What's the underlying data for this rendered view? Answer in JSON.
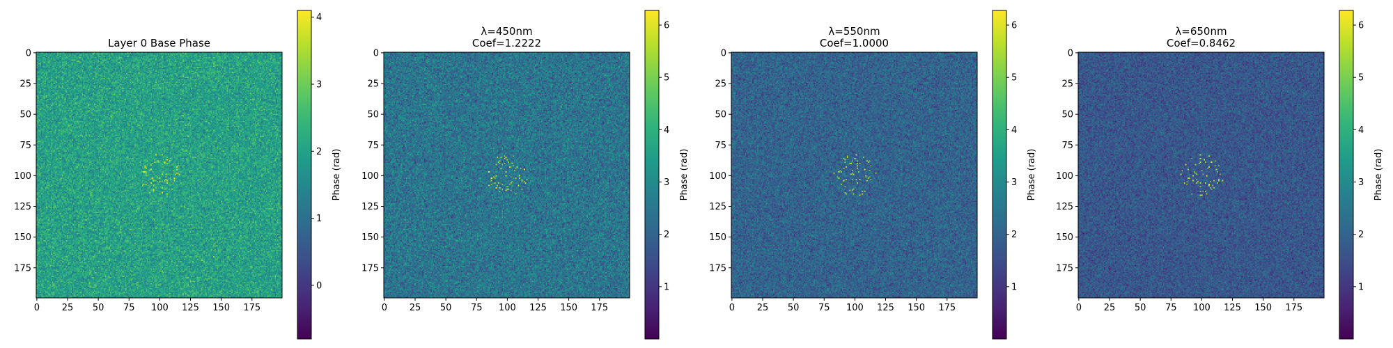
{
  "chart_data": [
    {
      "type": "heatmap",
      "title_lines": [
        "Layer 0 Base Phase"
      ],
      "x_ticks": [
        0,
        25,
        50,
        75,
        100,
        125,
        150,
        175
      ],
      "y_ticks": [
        0,
        25,
        50,
        75,
        100,
        125,
        150,
        175
      ],
      "xlim": [
        0,
        199
      ],
      "ylim": [
        0,
        199
      ],
      "grid_size": 200,
      "colormap": "viridis",
      "colorbar": {
        "label": "Phase (rad)",
        "range": [
          -0.8,
          4.1
        ],
        "ticks": [
          0,
          1,
          2,
          3,
          4
        ]
      },
      "background_mean_rad": 2.0,
      "background_spread_rad": 0.7,
      "center_feature": "sparse bright points near (100, 100)",
      "center_point_value_rad": 4.0
    },
    {
      "type": "heatmap",
      "title_lines": [
        "λ=450nm",
        "Coef=1.2222"
      ],
      "x_ticks": [
        0,
        25,
        50,
        75,
        100,
        125,
        150,
        175
      ],
      "y_ticks": [
        0,
        25,
        50,
        75,
        100,
        125,
        150,
        175
      ],
      "xlim": [
        0,
        199
      ],
      "ylim": [
        0,
        199
      ],
      "grid_size": 200,
      "colormap": "viridis",
      "colorbar": {
        "label": "Phase (rad)",
        "range": [
          0.0,
          6.28
        ],
        "ticks": [
          1,
          2,
          3,
          4,
          5,
          6
        ]
      },
      "background_mean_rad": 2.45,
      "background_spread_rad": 0.9,
      "center_feature": "sparse bright points near (100, 100)",
      "center_point_value_rad": 6.2
    },
    {
      "type": "heatmap",
      "title_lines": [
        "λ=550nm",
        "Coef=1.0000"
      ],
      "x_ticks": [
        0,
        25,
        50,
        75,
        100,
        125,
        150,
        175
      ],
      "y_ticks": [
        0,
        25,
        50,
        75,
        100,
        125,
        150,
        175
      ],
      "xlim": [
        0,
        199
      ],
      "ylim": [
        0,
        199
      ],
      "grid_size": 200,
      "colormap": "viridis",
      "colorbar": {
        "label": "Phase (rad)",
        "range": [
          0.0,
          6.28
        ],
        "ticks": [
          1,
          2,
          3,
          4,
          5,
          6
        ]
      },
      "background_mean_rad": 2.0,
      "background_spread_rad": 0.75,
      "center_feature": "sparse bright points near (100, 100)",
      "center_point_value_rad": 6.1
    },
    {
      "type": "heatmap",
      "title_lines": [
        "λ=650nm",
        "Coef=0.8462"
      ],
      "x_ticks": [
        0,
        25,
        50,
        75,
        100,
        125,
        150,
        175
      ],
      "y_ticks": [
        0,
        25,
        50,
        75,
        100,
        125,
        150,
        175
      ],
      "xlim": [
        0,
        199
      ],
      "ylim": [
        0,
        199
      ],
      "grid_size": 200,
      "colormap": "viridis",
      "colorbar": {
        "label": "Phase (rad)",
        "range": [
          0.0,
          6.28
        ],
        "ticks": [
          1,
          2,
          3,
          4,
          5,
          6
        ]
      },
      "background_mean_rad": 1.7,
      "background_spread_rad": 0.65,
      "center_feature": "sparse bright points near (100, 100)",
      "center_point_value_rad": 6.0
    }
  ]
}
